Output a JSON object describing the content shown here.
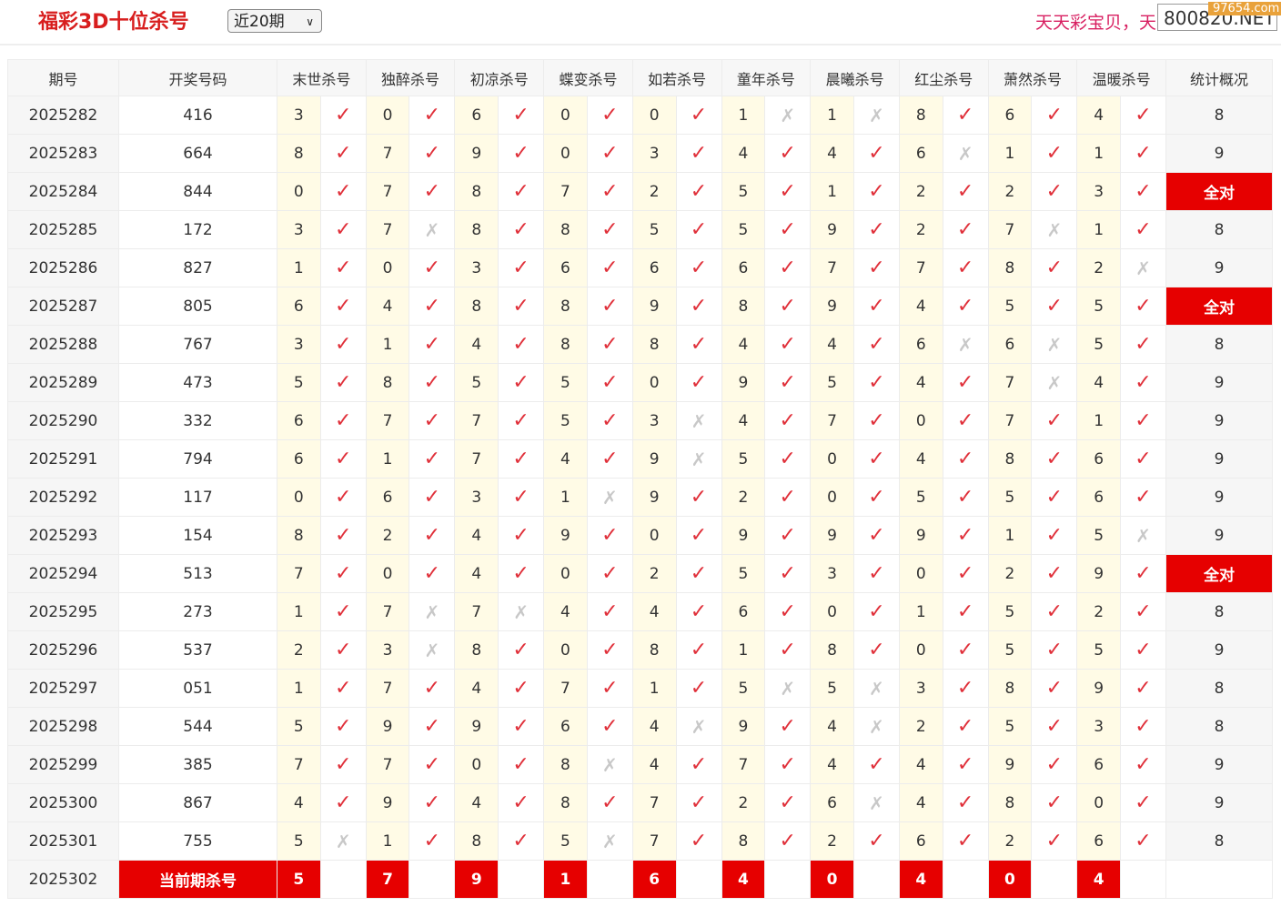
{
  "header": {
    "title": "福彩3D十位杀号",
    "select": "近20期",
    "slogan": "天天彩宝贝，天",
    "site": "800820.NET",
    "watermark": "97654.com"
  },
  "table": {
    "columns": [
      "期号",
      "开奖号码",
      "末世杀号",
      "独醉杀号",
      "初凉杀号",
      "蝶变杀号",
      "如若杀号",
      "童年杀号",
      "晨曦杀号",
      "红尘杀号",
      "萧然杀号",
      "温暖杀号",
      "统计概况"
    ],
    "rows": [
      [
        "2025282",
        "416",
        [
          [
            "3",
            "✓"
          ],
          [
            "0",
            "✓"
          ],
          [
            "6",
            "✓"
          ],
          [
            "0",
            "✓"
          ],
          [
            "0",
            "✓"
          ],
          [
            "1",
            "✗"
          ],
          [
            "1",
            "✗"
          ],
          [
            "8",
            "✓"
          ],
          [
            "6",
            "✓"
          ],
          [
            "4",
            "✓"
          ]
        ],
        "8"
      ],
      [
        "2025283",
        "664",
        [
          [
            "8",
            "✓"
          ],
          [
            "7",
            "✓"
          ],
          [
            "9",
            "✓"
          ],
          [
            "0",
            "✓"
          ],
          [
            "3",
            "✓"
          ],
          [
            "4",
            "✓"
          ],
          [
            "4",
            "✓"
          ],
          [
            "6",
            "✗"
          ],
          [
            "1",
            "✓"
          ],
          [
            "1",
            "✓"
          ]
        ],
        "9"
      ],
      [
        "2025284",
        "844",
        [
          [
            "0",
            "✓"
          ],
          [
            "7",
            "✓"
          ],
          [
            "8",
            "✓"
          ],
          [
            "7",
            "✓"
          ],
          [
            "2",
            "✓"
          ],
          [
            "5",
            "✓"
          ],
          [
            "1",
            "✓"
          ],
          [
            "2",
            "✓"
          ],
          [
            "2",
            "✓"
          ],
          [
            "3",
            "✓"
          ]
        ],
        "全对"
      ],
      [
        "2025285",
        "172",
        [
          [
            "3",
            "✓"
          ],
          [
            "7",
            "✗"
          ],
          [
            "8",
            "✓"
          ],
          [
            "8",
            "✓"
          ],
          [
            "5",
            "✓"
          ],
          [
            "5",
            "✓"
          ],
          [
            "9",
            "✓"
          ],
          [
            "2",
            "✓"
          ],
          [
            "7",
            "✗"
          ],
          [
            "1",
            "✓"
          ]
        ],
        "8"
      ],
      [
        "2025286",
        "827",
        [
          [
            "1",
            "✓"
          ],
          [
            "0",
            "✓"
          ],
          [
            "3",
            "✓"
          ],
          [
            "6",
            "✓"
          ],
          [
            "6",
            "✓"
          ],
          [
            "6",
            "✓"
          ],
          [
            "7",
            "✓"
          ],
          [
            "7",
            "✓"
          ],
          [
            "8",
            "✓"
          ],
          [
            "2",
            "✗"
          ]
        ],
        "9"
      ],
      [
        "2025287",
        "805",
        [
          [
            "6",
            "✓"
          ],
          [
            "4",
            "✓"
          ],
          [
            "8",
            "✓"
          ],
          [
            "8",
            "✓"
          ],
          [
            "9",
            "✓"
          ],
          [
            "8",
            "✓"
          ],
          [
            "9",
            "✓"
          ],
          [
            "4",
            "✓"
          ],
          [
            "5",
            "✓"
          ],
          [
            "5",
            "✓"
          ]
        ],
        "全对"
      ],
      [
        "2025288",
        "767",
        [
          [
            "3",
            "✓"
          ],
          [
            "1",
            "✓"
          ],
          [
            "4",
            "✓"
          ],
          [
            "8",
            "✓"
          ],
          [
            "8",
            "✓"
          ],
          [
            "4",
            "✓"
          ],
          [
            "4",
            "✓"
          ],
          [
            "6",
            "✗"
          ],
          [
            "6",
            "✗"
          ],
          [
            "5",
            "✓"
          ]
        ],
        "8"
      ],
      [
        "2025289",
        "473",
        [
          [
            "5",
            "✓"
          ],
          [
            "8",
            "✓"
          ],
          [
            "5",
            "✓"
          ],
          [
            "5",
            "✓"
          ],
          [
            "0",
            "✓"
          ],
          [
            "9",
            "✓"
          ],
          [
            "5",
            "✓"
          ],
          [
            "4",
            "✓"
          ],
          [
            "7",
            "✗"
          ],
          [
            "4",
            "✓"
          ]
        ],
        "9"
      ],
      [
        "2025290",
        "332",
        [
          [
            "6",
            "✓"
          ],
          [
            "7",
            "✓"
          ],
          [
            "7",
            "✓"
          ],
          [
            "5",
            "✓"
          ],
          [
            "3",
            "✗"
          ],
          [
            "4",
            "✓"
          ],
          [
            "7",
            "✓"
          ],
          [
            "0",
            "✓"
          ],
          [
            "7",
            "✓"
          ],
          [
            "1",
            "✓"
          ]
        ],
        "9"
      ],
      [
        "2025291",
        "794",
        [
          [
            "6",
            "✓"
          ],
          [
            "1",
            "✓"
          ],
          [
            "7",
            "✓"
          ],
          [
            "4",
            "✓"
          ],
          [
            "9",
            "✗"
          ],
          [
            "5",
            "✓"
          ],
          [
            "0",
            "✓"
          ],
          [
            "4",
            "✓"
          ],
          [
            "8",
            "✓"
          ],
          [
            "6",
            "✓"
          ]
        ],
        "9"
      ],
      [
        "2025292",
        "117",
        [
          [
            "0",
            "✓"
          ],
          [
            "6",
            "✓"
          ],
          [
            "3",
            "✓"
          ],
          [
            "1",
            "✗"
          ],
          [
            "9",
            "✓"
          ],
          [
            "2",
            "✓"
          ],
          [
            "0",
            "✓"
          ],
          [
            "5",
            "✓"
          ],
          [
            "5",
            "✓"
          ],
          [
            "6",
            "✓"
          ]
        ],
        "9"
      ],
      [
        "2025293",
        "154",
        [
          [
            "8",
            "✓"
          ],
          [
            "2",
            "✓"
          ],
          [
            "4",
            "✓"
          ],
          [
            "9",
            "✓"
          ],
          [
            "0",
            "✓"
          ],
          [
            "9",
            "✓"
          ],
          [
            "9",
            "✓"
          ],
          [
            "9",
            "✓"
          ],
          [
            "1",
            "✓"
          ],
          [
            "5",
            "✗"
          ]
        ],
        "9"
      ],
      [
        "2025294",
        "513",
        [
          [
            "7",
            "✓"
          ],
          [
            "0",
            "✓"
          ],
          [
            "4",
            "✓"
          ],
          [
            "0",
            "✓"
          ],
          [
            "2",
            "✓"
          ],
          [
            "5",
            "✓"
          ],
          [
            "3",
            "✓"
          ],
          [
            "0",
            "✓"
          ],
          [
            "2",
            "✓"
          ],
          [
            "9",
            "✓"
          ]
        ],
        "全对"
      ],
      [
        "2025295",
        "273",
        [
          [
            "1",
            "✓"
          ],
          [
            "7",
            "✗"
          ],
          [
            "7",
            "✗"
          ],
          [
            "4",
            "✓"
          ],
          [
            "4",
            "✓"
          ],
          [
            "6",
            "✓"
          ],
          [
            "0",
            "✓"
          ],
          [
            "1",
            "✓"
          ],
          [
            "5",
            "✓"
          ],
          [
            "2",
            "✓"
          ]
        ],
        "8"
      ],
      [
        "2025296",
        "537",
        [
          [
            "2",
            "✓"
          ],
          [
            "3",
            "✗"
          ],
          [
            "8",
            "✓"
          ],
          [
            "0",
            "✓"
          ],
          [
            "8",
            "✓"
          ],
          [
            "1",
            "✓"
          ],
          [
            "8",
            "✓"
          ],
          [
            "0",
            "✓"
          ],
          [
            "5",
            "✓"
          ],
          [
            "5",
            "✓"
          ]
        ],
        "9"
      ],
      [
        "2025297",
        "051",
        [
          [
            "1",
            "✓"
          ],
          [
            "7",
            "✓"
          ],
          [
            "4",
            "✓"
          ],
          [
            "7",
            "✓"
          ],
          [
            "1",
            "✓"
          ],
          [
            "5",
            "✗"
          ],
          [
            "5",
            "✗"
          ],
          [
            "3",
            "✓"
          ],
          [
            "8",
            "✓"
          ],
          [
            "9",
            "✓"
          ]
        ],
        "8"
      ],
      [
        "2025298",
        "544",
        [
          [
            "5",
            "✓"
          ],
          [
            "9",
            "✓"
          ],
          [
            "9",
            "✓"
          ],
          [
            "6",
            "✓"
          ],
          [
            "4",
            "✗"
          ],
          [
            "9",
            "✓"
          ],
          [
            "4",
            "✗"
          ],
          [
            "2",
            "✓"
          ],
          [
            "5",
            "✓"
          ],
          [
            "3",
            "✓"
          ]
        ],
        "8"
      ],
      [
        "2025299",
        "385",
        [
          [
            "7",
            "✓"
          ],
          [
            "7",
            "✓"
          ],
          [
            "0",
            "✓"
          ],
          [
            "8",
            "✗"
          ],
          [
            "4",
            "✓"
          ],
          [
            "7",
            "✓"
          ],
          [
            "4",
            "✓"
          ],
          [
            "4",
            "✓"
          ],
          [
            "9",
            "✓"
          ],
          [
            "6",
            "✓"
          ]
        ],
        "9"
      ],
      [
        "2025300",
        "867",
        [
          [
            "4",
            "✓"
          ],
          [
            "9",
            "✓"
          ],
          [
            "4",
            "✓"
          ],
          [
            "8",
            "✓"
          ],
          [
            "7",
            "✓"
          ],
          [
            "2",
            "✓"
          ],
          [
            "6",
            "✗"
          ],
          [
            "4",
            "✓"
          ],
          [
            "8",
            "✓"
          ],
          [
            "0",
            "✓"
          ]
        ],
        "9"
      ],
      [
        "2025301",
        "755",
        [
          [
            "5",
            "✗"
          ],
          [
            "1",
            "✓"
          ],
          [
            "8",
            "✓"
          ],
          [
            "5",
            "✗"
          ],
          [
            "7",
            "✓"
          ],
          [
            "8",
            "✓"
          ],
          [
            "2",
            "✓"
          ],
          [
            "6",
            "✓"
          ],
          [
            "2",
            "✓"
          ],
          [
            "6",
            "✓"
          ]
        ],
        "8"
      ]
    ],
    "current": {
      "period": "2025302",
      "label": "当前期杀号",
      "kills": [
        "5",
        "7",
        "9",
        "1",
        "6",
        "4",
        "0",
        "4",
        "0",
        "4"
      ]
    }
  }
}
